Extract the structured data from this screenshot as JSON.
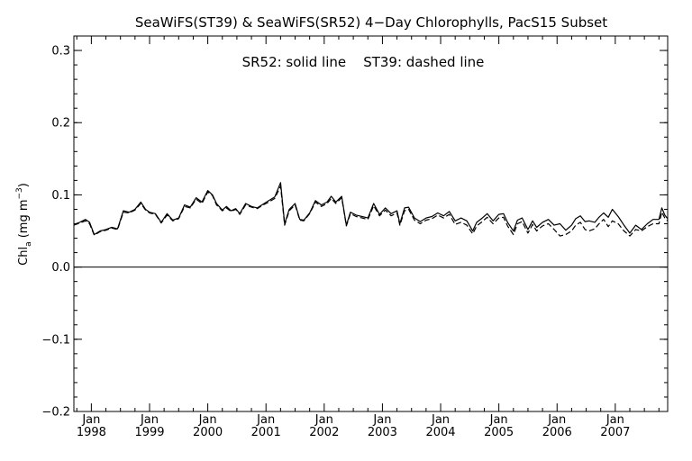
{
  "chart_data": {
    "type": "line",
    "title": "SeaWiFS(ST39) & SeaWiFS(SR52) 4−Day Chlorophylls, PacS15 Subset",
    "annotation": "SR52: solid line    ST39: dashed line",
    "ylabel": {
      "main": "Chl",
      "sub": "a",
      "units_open": " (mg m",
      "sup": "−3",
      "units_close": ")"
    },
    "ylim": [
      -0.2,
      0.32
    ],
    "yticks": [
      -0.2,
      -0.1,
      0.0,
      0.1,
      0.2,
      0.3
    ],
    "ytick_labels": [
      "−0.2",
      "−0.1",
      "0.0",
      "0.1",
      "0.2",
      "0.3"
    ],
    "xlim": [
      1997.7,
      2007.9
    ],
    "xticks": [
      {
        "value": 1998.0,
        "month": "Jan",
        "year": "1998"
      },
      {
        "value": 1999.0,
        "month": "Jan",
        "year": "1999"
      },
      {
        "value": 2000.0,
        "month": "Jan",
        "year": "2000"
      },
      {
        "value": 2001.0,
        "month": "Jan",
        "year": "2001"
      },
      {
        "value": 2002.0,
        "month": "Jan",
        "year": "2002"
      },
      {
        "value": 2003.0,
        "month": "Jan",
        "year": "2003"
      },
      {
        "value": 2004.0,
        "month": "Jan",
        "year": "2004"
      },
      {
        "value": 2005.0,
        "month": "Jan",
        "year": "2005"
      },
      {
        "value": 2006.0,
        "month": "Jan",
        "year": "2006"
      },
      {
        "value": 2007.0,
        "month": "Jan",
        "year": "2007"
      }
    ],
    "zero_line": 0.0,
    "series": [
      {
        "name": "SR52",
        "style": "solid",
        "color": "#000000",
        "points": [
          [
            1997.7,
            0.059
          ],
          [
            1997.8,
            0.062
          ],
          [
            1997.9,
            0.066
          ],
          [
            1997.97,
            0.062
          ],
          [
            1998.05,
            0.045
          ],
          [
            1998.15,
            0.05
          ],
          [
            1998.25,
            0.052
          ],
          [
            1998.35,
            0.055
          ],
          [
            1998.45,
            0.053
          ],
          [
            1998.55,
            0.078
          ],
          [
            1998.65,
            0.076
          ],
          [
            1998.75,
            0.08
          ],
          [
            1998.85,
            0.09
          ],
          [
            1998.93,
            0.08
          ],
          [
            1999.0,
            0.076
          ],
          [
            1999.1,
            0.074
          ],
          [
            1999.2,
            0.062
          ],
          [
            1999.3,
            0.074
          ],
          [
            1999.4,
            0.065
          ],
          [
            1999.5,
            0.068
          ],
          [
            1999.6,
            0.086
          ],
          [
            1999.7,
            0.083
          ],
          [
            1999.8,
            0.096
          ],
          [
            1999.9,
            0.09
          ],
          [
            2000.0,
            0.106
          ],
          [
            2000.08,
            0.1
          ],
          [
            2000.15,
            0.088
          ],
          [
            2000.25,
            0.079
          ],
          [
            2000.32,
            0.084
          ],
          [
            2000.4,
            0.078
          ],
          [
            2000.48,
            0.081
          ],
          [
            2000.55,
            0.074
          ],
          [
            2000.65,
            0.088
          ],
          [
            2000.75,
            0.084
          ],
          [
            2000.85,
            0.082
          ],
          [
            2000.95,
            0.087
          ],
          [
            2001.05,
            0.092
          ],
          [
            2001.15,
            0.097
          ],
          [
            2001.25,
            0.117
          ],
          [
            2001.32,
            0.06
          ],
          [
            2001.4,
            0.08
          ],
          [
            2001.5,
            0.088
          ],
          [
            2001.58,
            0.066
          ],
          [
            2001.65,
            0.065
          ],
          [
            2001.75,
            0.075
          ],
          [
            2001.85,
            0.092
          ],
          [
            2001.95,
            0.086
          ],
          [
            2002.05,
            0.09
          ],
          [
            2002.12,
            0.098
          ],
          [
            2002.2,
            0.09
          ],
          [
            2002.3,
            0.098
          ],
          [
            2002.38,
            0.058
          ],
          [
            2002.45,
            0.076
          ],
          [
            2002.55,
            0.072
          ],
          [
            2002.65,
            0.07
          ],
          [
            2002.75,
            0.068
          ],
          [
            2002.85,
            0.088
          ],
          [
            2002.95,
            0.073
          ],
          [
            2003.05,
            0.082
          ],
          [
            2003.15,
            0.074
          ],
          [
            2003.25,
            0.078
          ],
          [
            2003.3,
            0.06
          ],
          [
            2003.38,
            0.082
          ],
          [
            2003.45,
            0.083
          ],
          [
            2003.55,
            0.068
          ],
          [
            2003.65,
            0.063
          ],
          [
            2003.75,
            0.068
          ],
          [
            2003.85,
            0.07
          ],
          [
            2003.95,
            0.075
          ],
          [
            2004.05,
            0.071
          ],
          [
            2004.15,
            0.077
          ],
          [
            2004.25,
            0.064
          ],
          [
            2004.35,
            0.068
          ],
          [
            2004.45,
            0.064
          ],
          [
            2004.55,
            0.05
          ],
          [
            2004.62,
            0.062
          ],
          [
            2004.7,
            0.067
          ],
          [
            2004.8,
            0.074
          ],
          [
            2004.9,
            0.064
          ],
          [
            2005.0,
            0.073
          ],
          [
            2005.08,
            0.074
          ],
          [
            2005.15,
            0.062
          ],
          [
            2005.25,
            0.05
          ],
          [
            2005.32,
            0.065
          ],
          [
            2005.4,
            0.068
          ],
          [
            2005.5,
            0.052
          ],
          [
            2005.58,
            0.064
          ],
          [
            2005.65,
            0.055
          ],
          [
            2005.75,
            0.062
          ],
          [
            2005.85,
            0.066
          ],
          [
            2005.95,
            0.058
          ],
          [
            2006.05,
            0.06
          ],
          [
            2006.15,
            0.051
          ],
          [
            2006.25,
            0.058
          ],
          [
            2006.32,
            0.067
          ],
          [
            2006.4,
            0.071
          ],
          [
            2006.48,
            0.063
          ],
          [
            2006.55,
            0.064
          ],
          [
            2006.65,
            0.062
          ],
          [
            2006.72,
            0.069
          ],
          [
            2006.8,
            0.075
          ],
          [
            2006.88,
            0.069
          ],
          [
            2006.95,
            0.08
          ],
          [
            2007.05,
            0.07
          ],
          [
            2007.15,
            0.058
          ],
          [
            2007.25,
            0.047
          ],
          [
            2007.35,
            0.058
          ],
          [
            2007.45,
            0.052
          ],
          [
            2007.55,
            0.06
          ],
          [
            2007.65,
            0.066
          ],
          [
            2007.75,
            0.066
          ],
          [
            2007.8,
            0.082
          ],
          [
            2007.85,
            0.072
          ],
          [
            2007.9,
            0.067
          ]
        ]
      },
      {
        "name": "ST39",
        "style": "dashed",
        "color": "#000000",
        "points": [
          [
            1997.7,
            0.058
          ],
          [
            1997.8,
            0.061
          ],
          [
            1997.9,
            0.064
          ],
          [
            1997.97,
            0.06
          ],
          [
            1998.05,
            0.044
          ],
          [
            1998.15,
            0.049
          ],
          [
            1998.25,
            0.051
          ],
          [
            1998.35,
            0.054
          ],
          [
            1998.45,
            0.052
          ],
          [
            1998.55,
            0.076
          ],
          [
            1998.65,
            0.075
          ],
          [
            1998.75,
            0.079
          ],
          [
            1998.85,
            0.088
          ],
          [
            1998.93,
            0.079
          ],
          [
            1999.0,
            0.075
          ],
          [
            1999.1,
            0.073
          ],
          [
            1999.2,
            0.061
          ],
          [
            1999.3,
            0.072
          ],
          [
            1999.4,
            0.064
          ],
          [
            1999.5,
            0.067
          ],
          [
            1999.6,
            0.084
          ],
          [
            1999.7,
            0.082
          ],
          [
            1999.8,
            0.094
          ],
          [
            1999.9,
            0.088
          ],
          [
            2000.0,
            0.104
          ],
          [
            2000.08,
            0.099
          ],
          [
            2000.15,
            0.086
          ],
          [
            2000.25,
            0.078
          ],
          [
            2000.32,
            0.082
          ],
          [
            2000.4,
            0.077
          ],
          [
            2000.48,
            0.08
          ],
          [
            2000.55,
            0.073
          ],
          [
            2000.65,
            0.086
          ],
          [
            2000.75,
            0.083
          ],
          [
            2000.85,
            0.081
          ],
          [
            2000.95,
            0.086
          ],
          [
            2001.05,
            0.09
          ],
          [
            2001.15,
            0.095
          ],
          [
            2001.25,
            0.112
          ],
          [
            2001.32,
            0.058
          ],
          [
            2001.4,
            0.078
          ],
          [
            2001.5,
            0.086
          ],
          [
            2001.58,
            0.065
          ],
          [
            2001.65,
            0.064
          ],
          [
            2001.75,
            0.074
          ],
          [
            2001.85,
            0.09
          ],
          [
            2001.95,
            0.084
          ],
          [
            2002.05,
            0.088
          ],
          [
            2002.12,
            0.095
          ],
          [
            2002.2,
            0.088
          ],
          [
            2002.3,
            0.096
          ],
          [
            2002.38,
            0.057
          ],
          [
            2002.45,
            0.074
          ],
          [
            2002.55,
            0.07
          ],
          [
            2002.65,
            0.068
          ],
          [
            2002.75,
            0.066
          ],
          [
            2002.85,
            0.085
          ],
          [
            2002.95,
            0.071
          ],
          [
            2003.05,
            0.079
          ],
          [
            2003.15,
            0.071
          ],
          [
            2003.25,
            0.075
          ],
          [
            2003.3,
            0.058
          ],
          [
            2003.38,
            0.078
          ],
          [
            2003.45,
            0.08
          ],
          [
            2003.55,
            0.065
          ],
          [
            2003.65,
            0.06
          ],
          [
            2003.75,
            0.065
          ],
          [
            2003.85,
            0.067
          ],
          [
            2003.95,
            0.072
          ],
          [
            2004.05,
            0.068
          ],
          [
            2004.15,
            0.073
          ],
          [
            2004.25,
            0.059
          ],
          [
            2004.35,
            0.062
          ],
          [
            2004.45,
            0.058
          ],
          [
            2004.55,
            0.046
          ],
          [
            2004.62,
            0.057
          ],
          [
            2004.7,
            0.062
          ],
          [
            2004.8,
            0.069
          ],
          [
            2004.9,
            0.06
          ],
          [
            2005.0,
            0.068
          ],
          [
            2005.08,
            0.069
          ],
          [
            2005.15,
            0.057
          ],
          [
            2005.25,
            0.045
          ],
          [
            2005.32,
            0.06
          ],
          [
            2005.4,
            0.063
          ],
          [
            2005.5,
            0.047
          ],
          [
            2005.58,
            0.059
          ],
          [
            2005.65,
            0.05
          ],
          [
            2005.75,
            0.057
          ],
          [
            2005.85,
            0.06
          ],
          [
            2005.95,
            0.052
          ],
          [
            2006.05,
            0.043
          ],
          [
            2006.15,
            0.045
          ],
          [
            2006.25,
            0.05
          ],
          [
            2006.32,
            0.058
          ],
          [
            2006.4,
            0.062
          ],
          [
            2006.48,
            0.052
          ],
          [
            2006.55,
            0.05
          ],
          [
            2006.65,
            0.053
          ],
          [
            2006.72,
            0.06
          ],
          [
            2006.8,
            0.066
          ],
          [
            2006.88,
            0.056
          ],
          [
            2006.95,
            0.064
          ],
          [
            2007.05,
            0.06
          ],
          [
            2007.15,
            0.05
          ],
          [
            2007.25,
            0.043
          ],
          [
            2007.35,
            0.052
          ],
          [
            2007.45,
            0.05
          ],
          [
            2007.55,
            0.056
          ],
          [
            2007.65,
            0.06
          ],
          [
            2007.75,
            0.06
          ],
          [
            2007.8,
            0.076
          ],
          [
            2007.85,
            0.068
          ],
          [
            2007.9,
            0.064
          ]
        ]
      }
    ]
  }
}
